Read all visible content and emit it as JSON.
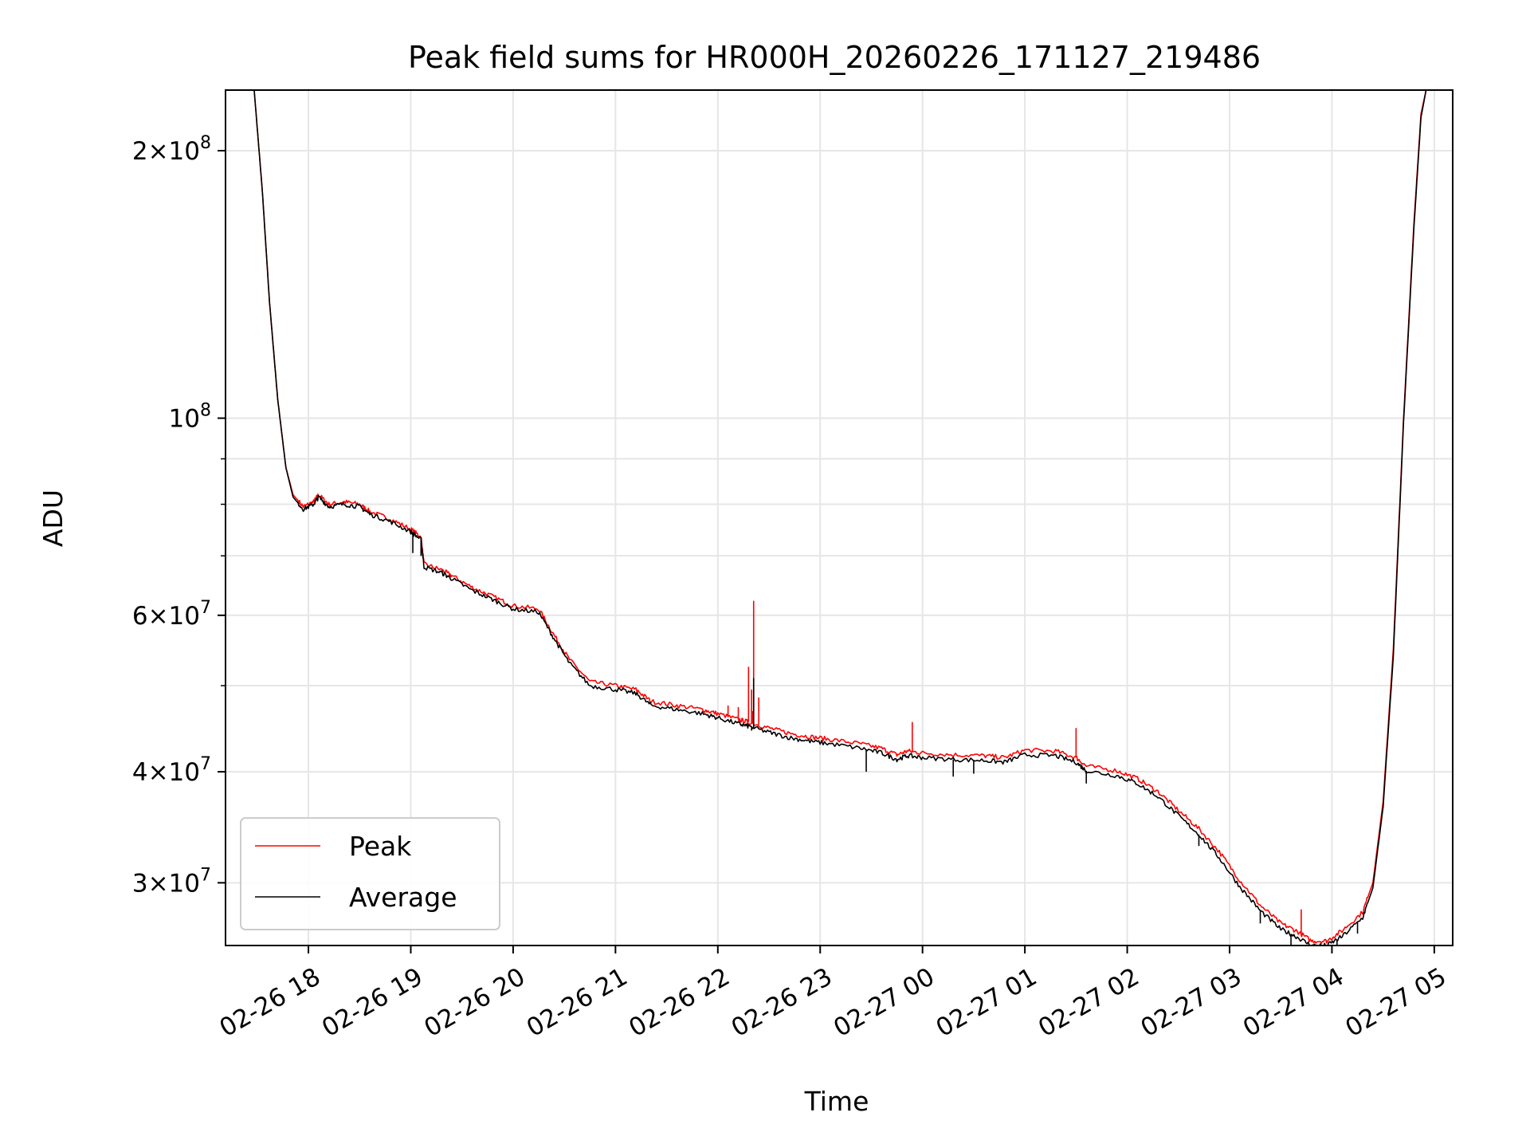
{
  "chart_data": {
    "type": "line",
    "title": "Peak field sums for HR000H_20260226_171127_219486",
    "xlabel": "Time",
    "ylabel": "ADU",
    "yscale": "log",
    "grid": true,
    "legend_position": "lower-left",
    "x_unit": "hours since 2026-02-26 00:00",
    "xlim": [
      17.19,
      29.18
    ],
    "ylim": [
      25500000,
      234000000
    ],
    "x_ticks": [
      {
        "value": 18,
        "label": "02-26 18"
      },
      {
        "value": 19,
        "label": "02-26 19"
      },
      {
        "value": 20,
        "label": "02-26 20"
      },
      {
        "value": 21,
        "label": "02-26 21"
      },
      {
        "value": 22,
        "label": "02-26 22"
      },
      {
        "value": 23,
        "label": "02-26 23"
      },
      {
        "value": 24,
        "label": "02-27 00"
      },
      {
        "value": 25,
        "label": "02-27 01"
      },
      {
        "value": 26,
        "label": "02-27 02"
      },
      {
        "value": 27,
        "label": "02-27 03"
      },
      {
        "value": 28,
        "label": "02-27 04"
      },
      {
        "value": 29,
        "label": "02-27 05"
      }
    ],
    "y_ticks": [
      {
        "value": 30000000,
        "mantissa": "3",
        "exp": "7"
      },
      {
        "value": 40000000,
        "mantissa": "4",
        "exp": "7"
      },
      {
        "value": 60000000,
        "mantissa": "6",
        "exp": "7"
      },
      {
        "value": 100000000,
        "mantissa": "",
        "exp": "8"
      },
      {
        "value": 200000000,
        "mantissa": "2",
        "exp": "8"
      }
    ],
    "y_minor_ticks": [
      50000000,
      70000000,
      80000000,
      90000000
    ],
    "series": [
      {
        "name": "Peak",
        "color": "#ff0000",
        "points": [
          [
            17.47,
            234000000
          ],
          [
            17.55,
            180000000
          ],
          [
            17.62,
            135000000
          ],
          [
            17.7,
            105000000
          ],
          [
            17.78,
            88000000
          ],
          [
            17.85,
            82000000
          ],
          [
            17.95,
            79500000
          ],
          [
            18.05,
            80500000
          ],
          [
            18.1,
            82000000
          ],
          [
            18.2,
            80000000
          ],
          [
            18.35,
            80500000
          ],
          [
            18.5,
            80000000
          ],
          [
            18.6,
            78500000
          ],
          [
            18.8,
            77000000
          ],
          [
            19.0,
            75000000
          ],
          [
            19.1,
            73500000
          ],
          [
            19.13,
            68500000
          ],
          [
            19.3,
            67500000
          ],
          [
            19.4,
            66500000
          ],
          [
            19.6,
            64500000
          ],
          [
            19.8,
            63000000
          ],
          [
            20.0,
            61500000
          ],
          [
            20.25,
            61000000
          ],
          [
            20.4,
            57000000
          ],
          [
            20.55,
            53500000
          ],
          [
            20.75,
            50500000
          ],
          [
            21.0,
            50000000
          ],
          [
            21.2,
            49500000
          ],
          [
            21.35,
            48000000
          ],
          [
            21.6,
            47500000
          ],
          [
            21.85,
            47000000
          ],
          [
            22.0,
            46500000
          ],
          [
            22.2,
            45800000
          ],
          [
            22.3,
            45500000
          ],
          [
            22.5,
            44800000
          ],
          [
            22.7,
            44200000
          ],
          [
            22.9,
            43800000
          ],
          [
            23.1,
            43500000
          ],
          [
            23.4,
            43000000
          ],
          [
            23.6,
            42500000
          ],
          [
            23.75,
            41800000
          ],
          [
            23.85,
            42200000
          ],
          [
            24.0,
            42000000
          ],
          [
            24.3,
            41800000
          ],
          [
            24.6,
            41700000
          ],
          [
            24.8,
            41500000
          ],
          [
            25.0,
            42300000
          ],
          [
            25.3,
            42200000
          ],
          [
            25.5,
            41500000
          ],
          [
            25.6,
            40600000
          ],
          [
            25.9,
            40100000
          ],
          [
            26.1,
            39300000
          ],
          [
            26.3,
            38000000
          ],
          [
            26.5,
            36200000
          ],
          [
            26.7,
            34500000
          ],
          [
            26.9,
            32500000
          ],
          [
            27.1,
            30200000
          ],
          [
            27.3,
            28300000
          ],
          [
            27.5,
            27000000
          ],
          [
            27.65,
            26500000
          ],
          [
            27.8,
            25800000
          ],
          [
            27.95,
            25800000
          ],
          [
            28.1,
            26500000
          ],
          [
            28.3,
            27800000
          ],
          [
            28.4,
            30000000
          ],
          [
            28.5,
            37000000
          ],
          [
            28.6,
            55000000
          ],
          [
            28.7,
            100000000
          ],
          [
            28.8,
            165000000
          ],
          [
            28.87,
            220000000
          ],
          [
            28.92,
            234000000
          ]
        ],
        "spikes": [
          [
            22.35,
            62300000
          ],
          [
            22.3,
            52500000
          ],
          [
            22.1,
            47500000
          ],
          [
            22.2,
            47300000
          ],
          [
            22.4,
            48500000
          ],
          [
            22.33,
            49500000
          ],
          [
            22.34,
            46800000
          ],
          [
            23.9,
            45500000
          ],
          [
            25.5,
            44800000
          ],
          [
            27.7,
            28000000
          ]
        ]
      },
      {
        "name": "Average",
        "color": "#000000",
        "points": [
          [
            17.47,
            234000000
          ],
          [
            17.55,
            180000000
          ],
          [
            17.62,
            135000000
          ],
          [
            17.7,
            105000000
          ],
          [
            17.78,
            88000000
          ],
          [
            17.85,
            81500000
          ],
          [
            17.95,
            79000000
          ],
          [
            18.05,
            80000000
          ],
          [
            18.1,
            81500000
          ],
          [
            18.2,
            79500000
          ],
          [
            18.35,
            80000000
          ],
          [
            18.5,
            79500000
          ],
          [
            18.6,
            78000000
          ],
          [
            18.8,
            76500000
          ],
          [
            19.0,
            74500000
          ],
          [
            19.1,
            73000000
          ],
          [
            19.13,
            68000000
          ],
          [
            19.3,
            67000000
          ],
          [
            19.4,
            66000000
          ],
          [
            19.6,
            64000000
          ],
          [
            19.8,
            62500000
          ],
          [
            20.0,
            61000000
          ],
          [
            20.25,
            60500000
          ],
          [
            20.4,
            56500000
          ],
          [
            20.55,
            53000000
          ],
          [
            20.75,
            50000000
          ],
          [
            21.0,
            49500000
          ],
          [
            21.2,
            49000000
          ],
          [
            21.35,
            47500000
          ],
          [
            21.6,
            47000000
          ],
          [
            21.85,
            46500000
          ],
          [
            22.0,
            46000000
          ],
          [
            22.2,
            45300000
          ],
          [
            22.3,
            45000000
          ],
          [
            22.5,
            44300000
          ],
          [
            22.7,
            43700000
          ],
          [
            22.9,
            43300000
          ],
          [
            23.1,
            43000000
          ],
          [
            23.4,
            42500000
          ],
          [
            23.6,
            42000000
          ],
          [
            23.75,
            41300000
          ],
          [
            23.85,
            41700000
          ],
          [
            24.0,
            41500000
          ],
          [
            24.3,
            41300000
          ],
          [
            24.6,
            41200000
          ],
          [
            24.8,
            41000000
          ],
          [
            25.0,
            41800000
          ],
          [
            25.3,
            41700000
          ],
          [
            25.5,
            41000000
          ],
          [
            25.6,
            40100000
          ],
          [
            25.9,
            39600000
          ],
          [
            26.1,
            38800000
          ],
          [
            26.3,
            37500000
          ],
          [
            26.5,
            35700000
          ],
          [
            26.7,
            34000000
          ],
          [
            26.9,
            32000000
          ],
          [
            27.1,
            29700000
          ],
          [
            27.3,
            27900000
          ],
          [
            27.5,
            26600000
          ],
          [
            27.65,
            26100000
          ],
          [
            27.8,
            25500000
          ],
          [
            27.95,
            25500000
          ],
          [
            28.1,
            26100000
          ],
          [
            28.3,
            27400000
          ],
          [
            28.4,
            29600000
          ],
          [
            28.5,
            36500000
          ],
          [
            28.6,
            54000000
          ],
          [
            28.7,
            99000000
          ],
          [
            28.8,
            163000000
          ],
          [
            28.87,
            218000000
          ],
          [
            28.92,
            234000000
          ]
        ],
        "spikes": [
          [
            19.02,
            70500000
          ],
          [
            19.1,
            70000000
          ],
          [
            22.35,
            51000000
          ],
          [
            22.33,
            44500000
          ],
          [
            23.45,
            40000000
          ],
          [
            24.3,
            39500000
          ],
          [
            24.5,
            39800000
          ],
          [
            25.6,
            38800000
          ],
          [
            26.7,
            33000000
          ],
          [
            27.0,
            30800000
          ],
          [
            27.3,
            27000000
          ],
          [
            27.6,
            25500000
          ],
          [
            27.85,
            25200000
          ],
          [
            28.05,
            25400000
          ],
          [
            28.25,
            26300000
          ]
        ]
      }
    ]
  }
}
